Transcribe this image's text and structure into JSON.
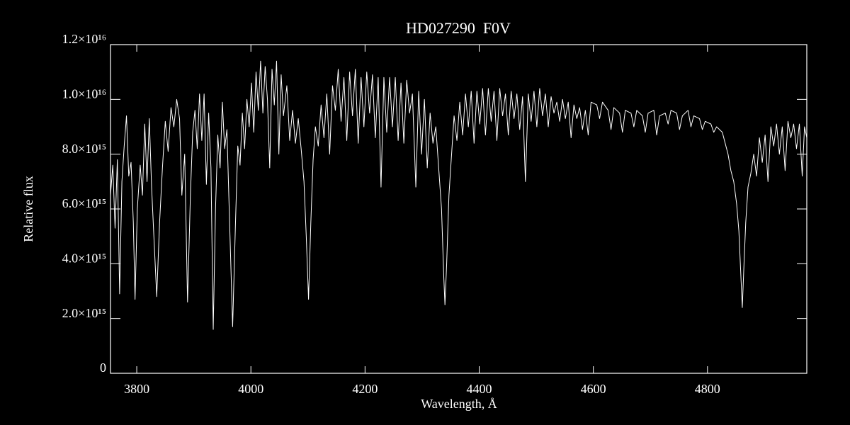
{
  "chart_data": {
    "type": "line",
    "title": "HD027290  F0V",
    "xlabel": "Wavelength, Å",
    "ylabel": "Relative flux",
    "color": "#ffffff",
    "xlim": [
      3754,
      4974
    ],
    "xticks": [
      3800,
      4000,
      4200,
      4400,
      4600,
      4800
    ],
    "ylim": [
      0,
      1.2e+16
    ],
    "yticks": [
      0,
      {
        "value": 2000000000000000.0,
        "label": "2.0×10¹⁵"
      },
      {
        "value": 4000000000000000.0,
        "label": "4.0×10¹⁵"
      },
      {
        "value": 6000000000000000.0,
        "label": "6.0×10¹⁵"
      },
      {
        "value": 8000000000000000.0,
        "label": "8.0×10¹⁵"
      },
      {
        "value": 1e+16,
        "label": "1.0×10¹⁶"
      },
      {
        "value": 1.2e+16,
        "label": "1.2×10¹⁶"
      }
    ],
    "x": [
      3754,
      3758,
      3762,
      3766,
      3770,
      3774,
      3778,
      3782,
      3786,
      3790,
      3794,
      3797,
      3801,
      3806,
      3810,
      3814,
      3818,
      3822,
      3826,
      3830,
      3835,
      3840,
      3845,
      3850,
      3855,
      3860,
      3865,
      3870,
      3875,
      3879,
      3884,
      3889,
      3894,
      3898,
      3902,
      3906,
      3910,
      3914,
      3918,
      3922,
      3926,
      3930,
      3934,
      3938,
      3942,
      3946,
      3950,
      3954,
      3958,
      3962,
      3968,
      3973,
      3977,
      3981,
      3985,
      3989,
      3993,
      3997,
      4001,
      4005,
      4009,
      4013,
      4017,
      4021,
      4025,
      4029,
      4033,
      4037,
      4041,
      4045,
      4049,
      4053,
      4057,
      4063,
      4068,
      4073,
      4078,
      4083,
      4088,
      4093,
      4097,
      4101,
      4105,
      4109,
      4113,
      4118,
      4123,
      4128,
      4133,
      4138,
      4143,
      4148,
      4153,
      4158,
      4163,
      4168,
      4173,
      4178,
      4183,
      4188,
      4193,
      4198,
      4203,
      4208,
      4213,
      4218,
      4223,
      4228,
      4233,
      4238,
      4243,
      4248,
      4253,
      4258,
      4263,
      4268,
      4273,
      4278,
      4283,
      4289,
      4294,
      4299,
      4304,
      4309,
      4314,
      4319,
      4324,
      4329,
      4334,
      4338,
      4340,
      4343,
      4347,
      4351,
      4356,
      4361,
      4366,
      4371,
      4376,
      4381,
      4386,
      4391,
      4396,
      4401,
      4406,
      4411,
      4416,
      4421,
      4426,
      4431,
      4436,
      4441,
      4446,
      4451,
      4456,
      4461,
      4466,
      4471,
      4476,
      4481,
      4486,
      4491,
      4496,
      4501,
      4506,
      4511,
      4516,
      4521,
      4526,
      4531,
      4536,
      4541,
      4546,
      4551,
      4556,
      4561,
      4566,
      4571,
      4576,
      4581,
      4586,
      4591,
      4596,
      4606,
      4611,
      4616,
      4626,
      4631,
      4636,
      4646,
      4651,
      4656,
      4666,
      4671,
      4676,
      4686,
      4691,
      4696,
      4706,
      4711,
      4716,
      4726,
      4731,
      4736,
      4746,
      4751,
      4756,
      4766,
      4771,
      4776,
      4786,
      4791,
      4796,
      4806,
      4811,
      4816,
      4826,
      4831,
      4836,
      4841,
      4846,
      4851,
      4855,
      4858,
      4861,
      4864,
      4867,
      4871,
      4876,
      4881,
      4886,
      4891,
      4896,
      4901,
      4906,
      4911,
      4916,
      4921,
      4926,
      4931,
      4936,
      4941,
      4946,
      4951,
      4956,
      4961,
      4966,
      4970,
      4974
    ],
    "values": [
      6500000000000000.0,
      7600000000000000.0,
      5300000000000000.0,
      7800000000000000.0,
      2900000000000000.0,
      7000000000000000.0,
      8300000000000000.0,
      9400000000000000.0,
      7200000000000000.0,
      7700000000000000.0,
      5500000000000000.0,
      2700000000000000.0,
      6000000000000000.0,
      7600000000000000.0,
      6500000000000000.0,
      9100000000000000.0,
      7000000000000000.0,
      9300000000000000.0,
      6800000000000000.0,
      5000000000000000.0,
      2800000000000000.0,
      5500000000000000.0,
      7500000000000000.0,
      9200000000000000.0,
      8100000000000000.0,
      9700000000000000.0,
      9000000000000000.0,
      1e+16,
      9300000000000000.0,
      6500000000000000.0,
      8000000000000000.0,
      2600000000000000.0,
      6500000000000000.0,
      8800000000000000.0,
      9600000000000000.0,
      8200000000000000.0,
      1.02e+16,
      8500000000000000.0,
      1.02e+16,
      6900000000000000.0,
      9500000000000000.0,
      7500000000000000.0,
      1600000000000000.0,
      6000000000000000.0,
      8700000000000000.0,
      7500000000000000.0,
      9900000000000000.0,
      8200000000000000.0,
      8900000000000000.0,
      6000000000000000.0,
      1700000000000000.0,
      5500000000000000.0,
      8300000000000000.0,
      7600000000000000.0,
      9500000000000000.0,
      8200000000000000.0,
      1e+16,
      9000000000000000.0,
      1.06e+16,
      8800000000000000.0,
      1.1e+16,
      9600000000000000.0,
      1.14e+16,
      9500000000000000.0,
      1.12e+16,
      1e+16,
      7500000000000000.0,
      1.11e+16,
      9800000000000000.0,
      1.14e+16,
      8000000000000000.0,
      1.09e+16,
      9400000000000000.0,
      1.05e+16,
      8500000000000000.0,
      9600000000000000.0,
      8400000000000000.0,
      9300000000000000.0,
      8200000000000000.0,
      7000000000000000.0,
      5000000000000000.0,
      2700000000000000.0,
      5500000000000000.0,
      7800000000000000.0,
      9000000000000000.0,
      8300000000000000.0,
      9800000000000000.0,
      8600000000000000.0,
      1.02e+16,
      8000000000000000.0,
      1.05e+16,
      9600000000000000.0,
      1.11e+16,
      9200000000000000.0,
      1.08e+16,
      8500000000000000.0,
      1.1e+16,
      9400000000000000.0,
      1.11e+16,
      8400000000000000.0,
      1.08e+16,
      9000000000000000.0,
      1.1e+16,
      9500000000000000.0,
      1.09e+16,
      8600000000000000.0,
      1.08e+16,
      6800000000000000.0,
      1.08e+16,
      8800000000000000.0,
      1.08e+16,
      9000000000000000.0,
      1.08e+16,
      8500000000000000.0,
      1.06e+16,
      8400000000000000.0,
      1.07e+16,
      9500000000000000.0,
      1.02e+16,
      6800000000000000.0,
      1.03e+16,
      8000000000000000.0,
      1e+16,
      7500000000000000.0,
      9500000000000000.0,
      8400000000000000.0,
      9000000000000000.0,
      7500000000000000.0,
      6000000000000000.0,
      3500000000000000.0,
      2500000000000000.0,
      4000000000000000.0,
      6500000000000000.0,
      7800000000000000.0,
      9400000000000000.0,
      8500000000000000.0,
      9900000000000000.0,
      8700000000000000.0,
      1.02e+16,
      9000000000000000.0,
      1.03e+16,
      8400000000000000.0,
      1.03e+16,
      9100000000000000.0,
      1.04e+16,
      8700000000000000.0,
      1.04e+16,
      9200000000000000.0,
      1.03e+16,
      8500000000000000.0,
      1.04e+16,
      9400000000000000.0,
      1.02e+16,
      8700000000000000.0,
      1.03e+16,
      9300000000000000.0,
      1.02e+16,
      8900000000000000.0,
      1.01e+16,
      7000000000000000.0,
      1.02e+16,
      9200000000000000.0,
      1.03e+16,
      9000000000000000.0,
      1.04e+16,
      9400000000000000.0,
      1.02e+16,
      9000000000000000.0,
      1.01e+16,
      9500000000000000.0,
      9900000000000000.0,
      9200000000000000.0,
      1e+16,
      9300000000000000.0,
      9900000000000000.0,
      8600000000000000.0,
      9800000000000000.0,
      9300000000000000.0,
      9700000000000000.0,
      8900000000000000.0,
      9600000000000000.0,
      8700000000000000.0,
      9900000000000000.0,
      9800000000000000.0,
      9300000000000000.0,
      9900000000000000.0,
      9600000000000000.0,
      8900000000000000.0,
      9700000000000000.0,
      9500000000000000.0,
      8800000000000000.0,
      9600000000000000.0,
      9500000000000000.0,
      9000000000000000.0,
      9600000000000000.0,
      9400000000000000.0,
      8800000000000000.0,
      9500000000000000.0,
      9600000000000000.0,
      8700000000000000.0,
      9400000000000000.0,
      9500000000000000.0,
      9100000000000000.0,
      9600000000000000.0,
      9500000000000000.0,
      8900000000000000.0,
      9400000000000000.0,
      9600000000000000.0,
      9000000000000000.0,
      9400000000000000.0,
      9300000000000000.0,
      8900000000000000.0,
      9200000000000000.0,
      9100000000000000.0,
      8800000000000000.0,
      9000000000000000.0,
      8800000000000000.0,
      8400000000000000.0,
      8000000000000000.0,
      7400000000000000.0,
      7000000000000000.0,
      6200000000000000.0,
      5200000000000000.0,
      3800000000000000.0,
      2400000000000000.0,
      4000000000000000.0,
      5500000000000000.0,
      6800000000000000.0,
      7300000000000000.0,
      8000000000000000.0,
      7200000000000000.0,
      8600000000000000.0,
      7700000000000000.0,
      8700000000000000.0,
      7000000000000000.0,
      9000000000000000.0,
      8300000000000000.0,
      9100000000000000.0,
      8000000000000000.0,
      9000000000000000.0,
      7400000000000000.0,
      9200000000000000.0,
      8600000000000000.0,
      9100000000000000.0,
      8200000000000000.0,
      9100000000000000.0,
      7200000000000000.0,
      9000000000000000.0,
      8600000000000000.0
    ]
  }
}
